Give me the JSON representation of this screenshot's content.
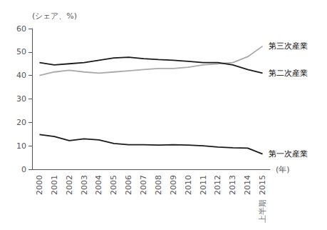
{
  "chart_data": {
    "type": "line",
    "categories": [
      "2000",
      "2001",
      "2002",
      "2003",
      "2004",
      "2005",
      "2006",
      "2007",
      "2008",
      "2009",
      "2010",
      "2011",
      "2012",
      "2013",
      "2014",
      "2015"
    ],
    "series": [
      {
        "name": "第三次産業",
        "color": "#aaaaaa",
        "values": [
          40.0,
          41.5,
          42.2,
          41.5,
          41.0,
          41.5,
          42.0,
          42.5,
          43.0,
          43.0,
          43.5,
          44.5,
          45.0,
          45.5,
          48.0,
          52.5
        ]
      },
      {
        "name": "第二次産業",
        "color": "#1a1a1a",
        "values": [
          45.5,
          44.5,
          45.0,
          45.5,
          46.5,
          47.5,
          47.8,
          47.2,
          46.8,
          46.5,
          46.0,
          45.5,
          45.5,
          44.5,
          42.5,
          41.0
        ]
      },
      {
        "name": "第一次産業",
        "color": "#1a1a1a",
        "values": [
          14.8,
          14.0,
          12.2,
          13.0,
          12.5,
          11.0,
          10.5,
          10.5,
          10.3,
          10.5,
          10.3,
          10.0,
          9.5,
          9.2,
          9.0,
          6.5
        ]
      }
    ],
    "xlabel": "(年)",
    "ylabel": "(シェア、%)",
    "annotations": [
      {
        "text": "上半期",
        "x": "2015"
      }
    ],
    "ylim": [
      0,
      60
    ],
    "yticks": [
      0,
      10,
      20,
      30,
      40,
      50,
      60
    ],
    "grid": false
  }
}
